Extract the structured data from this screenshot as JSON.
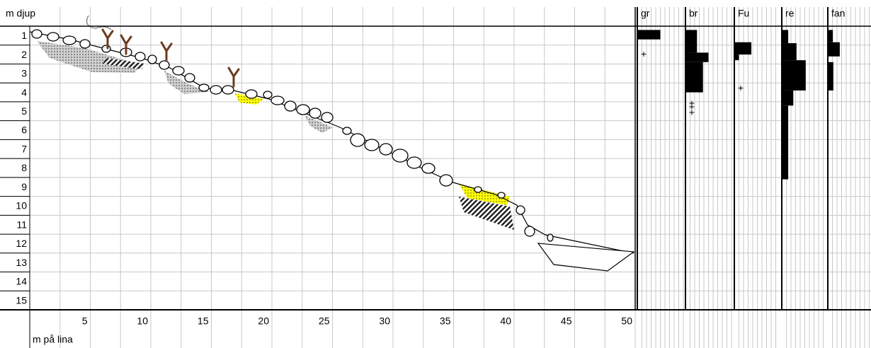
{
  "chart_data": {
    "type": "profile",
    "ylabel": "m djup",
    "xlabel": "m på lina",
    "xlim": [
      0,
      50
    ],
    "ylim": [
      0,
      15
    ],
    "xticks": [
      5,
      10,
      15,
      20,
      25,
      30,
      35,
      40,
      45,
      50
    ],
    "yticks": [
      1,
      2,
      3,
      4,
      5,
      6,
      7,
      8,
      9,
      10,
      11,
      12,
      13,
      14,
      15
    ],
    "panels": [
      {
        "name": "gr",
        "xlim": [
          0,
          10
        ],
        "segments": [
          {
            "top": 0.2,
            "bottom": 0.7,
            "value": 5
          }
        ],
        "markers": [
          {
            "depth": 1.5,
            "label": "+"
          }
        ]
      },
      {
        "name": "br",
        "xlim": [
          0,
          10
        ],
        "segments": [
          {
            "top": 0.2,
            "bottom": 1.4,
            "value": 2.5
          },
          {
            "top": 1.4,
            "bottom": 1.9,
            "value": 5
          },
          {
            "top": 1.9,
            "bottom": 3.5,
            "value": 3.8
          }
        ],
        "markers": [
          {
            "depth": 4.1,
            "label": "+"
          },
          {
            "depth": 4.3,
            "label": "+"
          },
          {
            "depth": 4.6,
            "label": "+"
          }
        ]
      },
      {
        "name": "Fu",
        "xlim": [
          0,
          10
        ],
        "segments": [
          {
            "top": 0.85,
            "bottom": 1.5,
            "value": 3.7
          },
          {
            "top": 1.5,
            "bottom": 1.8,
            "value": 1
          }
        ],
        "markers": [
          {
            "depth": 3.3,
            "label": "+"
          }
        ]
      },
      {
        "name": "re",
        "xlim": [
          0,
          10
        ],
        "segments": [
          {
            "top": 0.2,
            "bottom": 0.9,
            "value": 1.4
          },
          {
            "top": 0.9,
            "bottom": 1.8,
            "value": 3.2
          },
          {
            "top": 1.8,
            "bottom": 3.4,
            "value": 5.2
          },
          {
            "top": 3.4,
            "bottom": 4.2,
            "value": 2.5
          },
          {
            "top": 4.2,
            "bottom": 8.1,
            "value": 1.4
          }
        ],
        "markers": []
      },
      {
        "name": "fan",
        "xlim": [
          0,
          10
        ],
        "segments": [
          {
            "top": 0.2,
            "bottom": 0.85,
            "value": 1.1
          },
          {
            "top": 0.85,
            "bottom": 1.6,
            "value": 2.6
          },
          {
            "top": 1.9,
            "bottom": 3.4,
            "value": 1.2
          }
        ],
        "markers": []
      }
    ]
  }
}
